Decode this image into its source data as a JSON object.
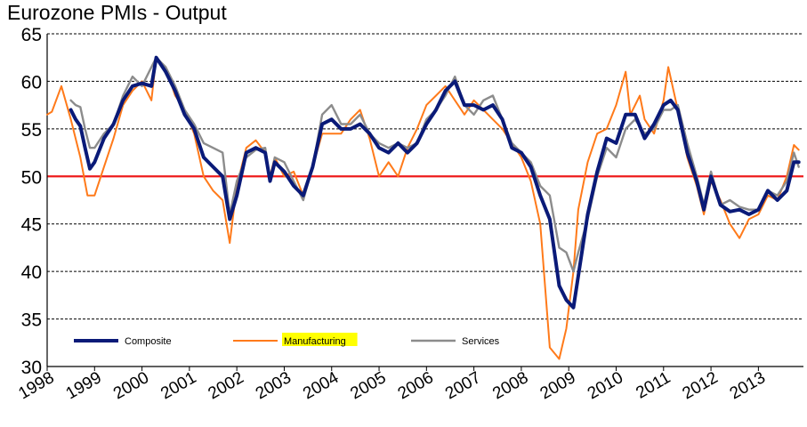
{
  "chart_data": {
    "type": "line",
    "title": "Eurozone PMIs - Output",
    "xlabel": "",
    "ylabel": "",
    "ylim": [
      30,
      65
    ],
    "xlim": [
      1998.0,
      2013.95
    ],
    "yticks": [
      30,
      35,
      40,
      45,
      50,
      55,
      60,
      65
    ],
    "xticks": [
      "1998",
      "1999",
      "2000",
      "2001",
      "2002",
      "2003",
      "2004",
      "2005",
      "2006",
      "2007",
      "2008",
      "2009",
      "2010",
      "2011",
      "2012",
      "2013"
    ],
    "grid": "horizontal dashed",
    "reference_line": {
      "value": 50,
      "color": "#ee1c1c"
    },
    "legend_position": "bottom-left",
    "highlighted_legend_label": "Manufacturing",
    "series": [
      {
        "name": "Composite",
        "color": "#0a1a78",
        "x": [
          1998.5,
          1998.6,
          1998.7,
          1998.8,
          1998.9,
          1999.0,
          1999.2,
          1999.4,
          1999.6,
          1999.8,
          2000.0,
          2000.2,
          2000.3,
          2000.5,
          2000.7,
          2000.9,
          2001.1,
          2001.3,
          2001.5,
          2001.7,
          2001.85,
          2002.0,
          2002.2,
          2002.4,
          2002.6,
          2002.7,
          2002.8,
          2003.0,
          2003.2,
          2003.4,
          2003.6,
          2003.8,
          2004.0,
          2004.2,
          2004.4,
          2004.6,
          2004.8,
          2005.0,
          2005.2,
          2005.4,
          2005.6,
          2005.8,
          2006.0,
          2006.2,
          2006.4,
          2006.6,
          2006.8,
          2007.0,
          2007.2,
          2007.4,
          2007.6,
          2007.8,
          2008.0,
          2008.2,
          2008.4,
          2008.6,
          2008.8,
          2008.95,
          2009.1,
          2009.2,
          2009.4,
          2009.6,
          2009.8,
          2010.0,
          2010.2,
          2010.4,
          2010.6,
          2010.8,
          2011.0,
          2011.15,
          2011.3,
          2011.5,
          2011.7,
          2011.85,
          2012.0,
          2012.2,
          2012.4,
          2012.6,
          2012.8,
          2013.0,
          2013.2,
          2013.4,
          2013.6,
          2013.75,
          2013.85
        ],
        "values": [
          57.0,
          56.0,
          55.3,
          53.0,
          50.8,
          51.5,
          54.0,
          55.5,
          58.0,
          59.5,
          59.8,
          59.5,
          62.5,
          61.0,
          59.0,
          56.5,
          55.0,
          52.0,
          51.0,
          50.0,
          45.5,
          48.0,
          52.5,
          53.0,
          52.5,
          49.5,
          51.5,
          50.5,
          49.0,
          48.0,
          51.0,
          55.5,
          56.0,
          55.0,
          55.0,
          55.5,
          54.5,
          53.0,
          52.5,
          53.5,
          52.5,
          53.5,
          55.5,
          57.0,
          59.0,
          60.0,
          57.5,
          57.5,
          57.0,
          57.5,
          56.0,
          53.0,
          52.5,
          51.0,
          48.0,
          45.5,
          38.5,
          37.0,
          36.2,
          39.5,
          46.0,
          50.5,
          54.0,
          53.5,
          56.5,
          56.5,
          54.0,
          55.5,
          57.5,
          58.0,
          57.0,
          52.5,
          49.5,
          46.5,
          50.0,
          47.0,
          46.3,
          46.5,
          46.0,
          46.5,
          48.5,
          47.5,
          48.5,
          51.5,
          51.5
        ]
      },
      {
        "name": "Manufacturing",
        "color": "#ff7a1a",
        "x": [
          1998.0,
          1998.1,
          1998.3,
          1998.5,
          1998.7,
          1998.85,
          1999.0,
          1999.2,
          1999.4,
          1999.6,
          1999.8,
          2000.0,
          2000.2,
          2000.3,
          2000.5,
          2000.7,
          2000.9,
          2001.1,
          2001.3,
          2001.5,
          2001.7,
          2001.85,
          2002.0,
          2002.2,
          2002.4,
          2002.6,
          2002.7,
          2002.8,
          2003.0,
          2003.2,
          2003.4,
          2003.6,
          2003.8,
          2004.0,
          2004.2,
          2004.4,
          2004.6,
          2004.8,
          2005.0,
          2005.2,
          2005.4,
          2005.6,
          2005.8,
          2006.0,
          2006.2,
          2006.4,
          2006.6,
          2006.8,
          2007.0,
          2007.2,
          2007.4,
          2007.6,
          2007.8,
          2008.0,
          2008.2,
          2008.4,
          2008.6,
          2008.8,
          2008.95,
          2009.1,
          2009.2,
          2009.4,
          2009.6,
          2009.8,
          2010.0,
          2010.2,
          2010.3,
          2010.5,
          2010.6,
          2010.8,
          2011.0,
          2011.1,
          2011.3,
          2011.5,
          2011.7,
          2011.85,
          2012.0,
          2012.2,
          2012.4,
          2012.6,
          2012.8,
          2013.0,
          2013.2,
          2013.4,
          2013.6,
          2013.75,
          2013.85
        ],
        "values": [
          56.5,
          56.8,
          59.5,
          56.0,
          52.0,
          48.0,
          48.0,
          51.0,
          54.0,
          57.5,
          59.0,
          60.0,
          58.0,
          62.5,
          61.5,
          58.5,
          57.0,
          54.5,
          50.0,
          48.5,
          47.5,
          43.0,
          49.0,
          53.0,
          53.8,
          52.5,
          50.0,
          52.0,
          50.0,
          50.5,
          48.0,
          51.0,
          54.5,
          54.5,
          54.5,
          56.0,
          57.0,
          54.0,
          50.0,
          51.5,
          50.0,
          53.0,
          55.0,
          57.5,
          58.5,
          59.5,
          58.0,
          56.5,
          58.0,
          57.0,
          56.0,
          55.0,
          53.5,
          52.0,
          49.5,
          45.0,
          32.0,
          30.8,
          34.0,
          40.0,
          46.5,
          51.5,
          54.5,
          55.0,
          57.5,
          61.0,
          56.5,
          58.5,
          56.0,
          54.5,
          58.0,
          61.5,
          57.0,
          52.0,
          49.0,
          46.0,
          49.5,
          47.5,
          45.0,
          43.5,
          45.5,
          46.0,
          48.0,
          47.5,
          50.0,
          53.3,
          52.8
        ]
      },
      {
        "name": "Services",
        "color": "#8c8c8c",
        "x": [
          1998.5,
          1998.6,
          1998.7,
          1998.8,
          1998.9,
          1999.0,
          1999.2,
          1999.4,
          1999.6,
          1999.8,
          2000.0,
          2000.2,
          2000.3,
          2000.5,
          2000.7,
          2000.9,
          2001.1,
          2001.3,
          2001.5,
          2001.7,
          2001.85,
          2002.0,
          2002.2,
          2002.4,
          2002.6,
          2002.7,
          2002.8,
          2003.0,
          2003.2,
          2003.4,
          2003.6,
          2003.8,
          2004.0,
          2004.2,
          2004.4,
          2004.6,
          2004.8,
          2005.0,
          2005.2,
          2005.4,
          2005.6,
          2005.8,
          2006.0,
          2006.2,
          2006.4,
          2006.6,
          2006.8,
          2007.0,
          2007.2,
          2007.4,
          2007.6,
          2007.8,
          2008.0,
          2008.2,
          2008.4,
          2008.6,
          2008.8,
          2008.95,
          2009.1,
          2009.2,
          2009.4,
          2009.6,
          2009.8,
          2010.0,
          2010.2,
          2010.4,
          2010.6,
          2010.8,
          2011.0,
          2011.15,
          2011.3,
          2011.5,
          2011.7,
          2011.85,
          2012.0,
          2012.2,
          2012.4,
          2012.6,
          2012.8,
          2013.0,
          2013.2,
          2013.4,
          2013.6,
          2013.75,
          2013.85
        ],
        "values": [
          58.0,
          57.5,
          57.3,
          55.0,
          53.0,
          53.0,
          54.5,
          55.5,
          58.5,
          60.5,
          59.5,
          61.5,
          62.5,
          61.5,
          59.5,
          57.0,
          55.5,
          53.5,
          53.0,
          52.5,
          46.0,
          49.5,
          52.0,
          52.8,
          53.0,
          49.5,
          52.0,
          51.5,
          49.5,
          47.5,
          51.0,
          56.5,
          57.5,
          55.5,
          55.5,
          56.5,
          54.5,
          53.5,
          53.0,
          53.5,
          53.0,
          53.5,
          56.0,
          57.0,
          58.5,
          60.5,
          57.5,
          56.5,
          58.0,
          58.5,
          56.0,
          53.5,
          52.5,
          51.5,
          49.0,
          48.0,
          42.5,
          42.0,
          40.0,
          42.0,
          45.5,
          50.0,
          53.0,
          52.0,
          55.0,
          56.0,
          54.5,
          55.0,
          57.0,
          57.0,
          57.5,
          53.5,
          50.0,
          47.0,
          50.5,
          47.0,
          47.5,
          46.8,
          46.5,
          46.5,
          48.5,
          48.0,
          49.5,
          52.5,
          51.0
        ]
      }
    ]
  }
}
